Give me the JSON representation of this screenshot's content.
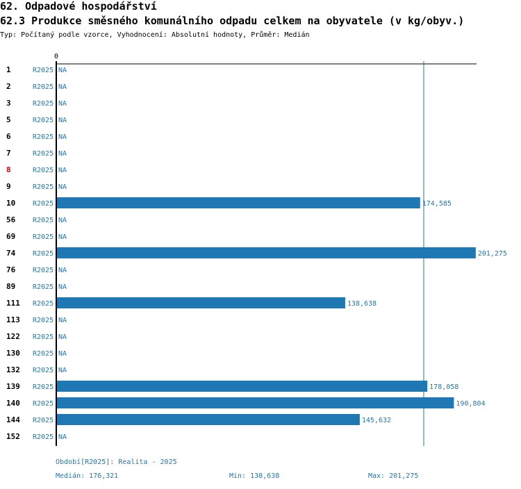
{
  "header": {
    "title": "62. Odpadové hospodářství",
    "subtitle": "62.3 Produkce směsného komunálního odpadu celkem na obyvatele (v kg/obyv.)",
    "type_line": "Typ: Počítaný podle vzorce, Vyhodnocení: Absolutní hodnoty, Průměr: Medián"
  },
  "colors": {
    "bar": "#1f77b4",
    "label": "#1f77b4",
    "highlight": "#e00000",
    "axis": "#000000",
    "median_line": "#1f77b4"
  },
  "chart_data": {
    "type": "bar",
    "orientation": "horizontal",
    "zero_label": "0",
    "median_value": 176.321,
    "max_value": 201.275,
    "rows": [
      {
        "id": "1",
        "period": "R2025",
        "value": null,
        "label": "NA"
      },
      {
        "id": "2",
        "period": "R2025",
        "value": null,
        "label": "NA"
      },
      {
        "id": "3",
        "period": "R2025",
        "value": null,
        "label": "NA"
      },
      {
        "id": "5",
        "period": "R2025",
        "value": null,
        "label": "NA"
      },
      {
        "id": "6",
        "period": "R2025",
        "value": null,
        "label": "NA"
      },
      {
        "id": "7",
        "period": "R2025",
        "value": null,
        "label": "NA"
      },
      {
        "id": "8",
        "period": "R2025",
        "value": null,
        "label": "NA",
        "highlight": true
      },
      {
        "id": "9",
        "period": "R2025",
        "value": null,
        "label": "NA"
      },
      {
        "id": "10",
        "period": "R2025",
        "value": 174.585,
        "label": "174,585"
      },
      {
        "id": "56",
        "period": "R2025",
        "value": null,
        "label": "NA"
      },
      {
        "id": "69",
        "period": "R2025",
        "value": null,
        "label": "NA"
      },
      {
        "id": "74",
        "period": "R2025",
        "value": 201.275,
        "label": "201,275"
      },
      {
        "id": "76",
        "period": "R2025",
        "value": null,
        "label": "NA"
      },
      {
        "id": "89",
        "period": "R2025",
        "value": null,
        "label": "NA"
      },
      {
        "id": "111",
        "period": "R2025",
        "value": 138.638,
        "label": "138,638"
      },
      {
        "id": "113",
        "period": "R2025",
        "value": null,
        "label": "NA"
      },
      {
        "id": "122",
        "period": "R2025",
        "value": null,
        "label": "NA"
      },
      {
        "id": "130",
        "period": "R2025",
        "value": null,
        "label": "NA"
      },
      {
        "id": "132",
        "period": "R2025",
        "value": null,
        "label": "NA"
      },
      {
        "id": "139",
        "period": "R2025",
        "value": 178.058,
        "label": "178,058"
      },
      {
        "id": "140",
        "period": "R2025",
        "value": 190.804,
        "label": "190,804"
      },
      {
        "id": "144",
        "period": "R2025",
        "value": 145.632,
        "label": "145,632"
      },
      {
        "id": "152",
        "period": "R2025",
        "value": null,
        "label": "NA"
      }
    ]
  },
  "footer": {
    "period_line": "Období[R2025]: Realita - 2025",
    "median": "Medián: 176,321",
    "min": "Min: 138,638",
    "max": "Max: 201,275"
  }
}
